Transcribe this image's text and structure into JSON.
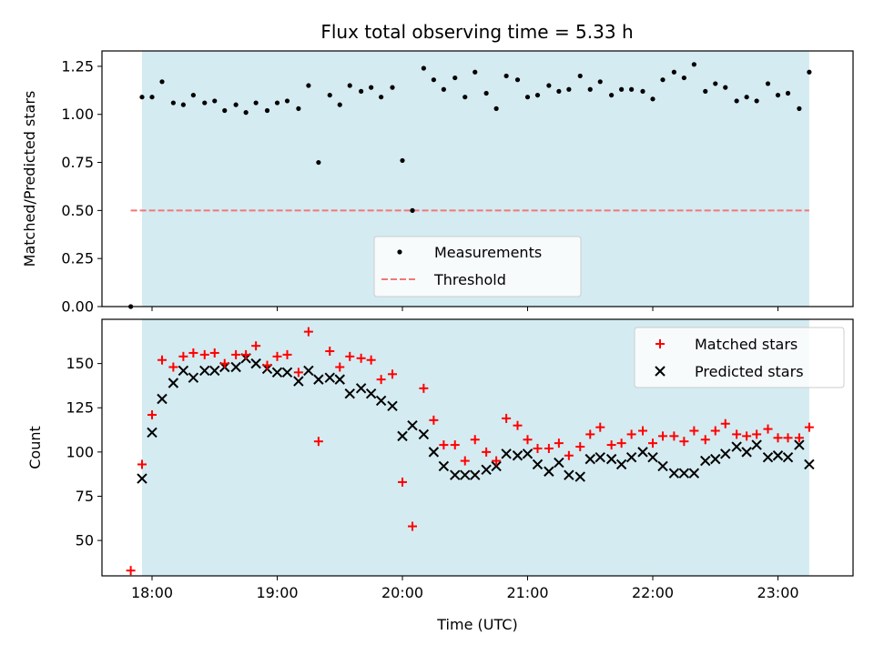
{
  "chart_data": {
    "type": "scatter",
    "title": "Flux total observing time = 5.33 h",
    "xlabel": "Time (UTC)",
    "x_unit": "hours UTC",
    "xlim": [
      17.6,
      23.6
    ],
    "xticks": [
      18,
      19,
      20,
      21,
      22,
      23
    ],
    "xtick_labels": [
      "18:00",
      "19:00",
      "20:00",
      "21:00",
      "22:00",
      "23:00"
    ],
    "observing_window": [
      17.92,
      23.25
    ],
    "top_panel": {
      "ylabel": "Matched/Predicted stars",
      "ylim": [
        0,
        1.33
      ],
      "yticks": [
        0.0,
        0.25,
        0.5,
        0.75,
        1.0,
        1.25
      ],
      "ytick_labels": [
        "0.00",
        "0.25",
        "0.50",
        "0.75",
        "1.00",
        "1.25"
      ],
      "legend_position": "lower-center",
      "legend": [
        "Measurements",
        "Threshold"
      ],
      "threshold": {
        "name": "Threshold",
        "value": 0.5,
        "x_range": [
          17.83,
          23.25
        ],
        "color": "#f07878"
      },
      "series": [
        {
          "name": "Measurements",
          "color": "#000000",
          "x": [
            17.83,
            17.92,
            18.0,
            18.08,
            18.17,
            18.25,
            18.33,
            18.42,
            18.5,
            18.58,
            18.67,
            18.75,
            18.83,
            18.92,
            19.0,
            19.08,
            19.17,
            19.25,
            19.33,
            19.42,
            19.5,
            19.58,
            19.67,
            19.75,
            19.83,
            19.92,
            20.0,
            20.08,
            20.17,
            20.25,
            20.33,
            20.42,
            20.5,
            20.58,
            20.67,
            20.75,
            20.83,
            20.92,
            21.0,
            21.08,
            21.17,
            21.25,
            21.33,
            21.42,
            21.5,
            21.58,
            21.67,
            21.75,
            21.83,
            21.92,
            22.0,
            22.08,
            22.17,
            22.25,
            22.33,
            22.42,
            22.5,
            22.58,
            22.67,
            22.75,
            22.83,
            22.92,
            23.0,
            23.08,
            23.17,
            23.25
          ],
          "y": [
            0.0,
            1.09,
            1.09,
            1.17,
            1.06,
            1.05,
            1.1,
            1.06,
            1.07,
            1.02,
            1.05,
            1.01,
            1.06,
            1.02,
            1.06,
            1.07,
            1.03,
            1.15,
            0.75,
            1.1,
            1.05,
            1.15,
            1.12,
            1.14,
            1.09,
            1.14,
            0.76,
            0.5,
            1.24,
            1.18,
            1.13,
            1.19,
            1.09,
            1.22,
            1.11,
            1.03,
            1.2,
            1.18,
            1.09,
            1.1,
            1.15,
            1.12,
            1.13,
            1.2,
            1.13,
            1.17,
            1.1,
            1.13,
            1.13,
            1.12,
            1.08,
            1.18,
            1.22,
            1.19,
            1.26,
            1.12,
            1.16,
            1.14,
            1.07,
            1.09,
            1.07,
            1.16,
            1.1,
            1.11,
            1.03,
            1.22
          ]
        }
      ]
    },
    "bottom_panel": {
      "ylabel": "Count",
      "ylim": [
        30,
        175
      ],
      "yticks": [
        50,
        75,
        100,
        125,
        150
      ],
      "ytick_labels": [
        "50",
        "75",
        "100",
        "125",
        "150"
      ],
      "legend_position": "top-right",
      "legend": [
        "Matched stars",
        "Predicted stars"
      ],
      "series": [
        {
          "name": "Matched stars",
          "marker": "plus",
          "color": "#ff0000",
          "x": [
            17.83,
            17.92,
            18.0,
            18.08,
            18.17,
            18.25,
            18.33,
            18.42,
            18.5,
            18.58,
            18.67,
            18.75,
            18.83,
            18.92,
            19.0,
            19.08,
            19.17,
            19.25,
            19.33,
            19.42,
            19.5,
            19.58,
            19.67,
            19.75,
            19.83,
            19.92,
            20.0,
            20.08,
            20.17,
            20.25,
            20.33,
            20.42,
            20.5,
            20.58,
            20.67,
            20.75,
            20.83,
            20.92,
            21.0,
            21.08,
            21.17,
            21.25,
            21.33,
            21.42,
            21.5,
            21.58,
            21.67,
            21.75,
            21.83,
            21.92,
            22.0,
            22.08,
            22.17,
            22.25,
            22.33,
            22.42,
            22.5,
            22.58,
            22.67,
            22.75,
            22.83,
            22.92,
            23.0,
            23.08,
            23.17,
            23.25
          ],
          "y": [
            33,
            93,
            121,
            152,
            148,
            154,
            156,
            155,
            156,
            150,
            155,
            155,
            160,
            149,
            154,
            155,
            145,
            168,
            106,
            157,
            148,
            154,
            153,
            152,
            141,
            144,
            83,
            58,
            136,
            118,
            104,
            104,
            95,
            107,
            100,
            95,
            119,
            115,
            107,
            102,
            102,
            105,
            98,
            103,
            110,
            114,
            104,
            105,
            110,
            112,
            105,
            109,
            109,
            106,
            112,
            107,
            112,
            116,
            110,
            109,
            110,
            113,
            108,
            108,
            108,
            114
          ]
        },
        {
          "name": "Predicted stars",
          "marker": "x",
          "color": "#000000",
          "x": [
            17.92,
            18.0,
            18.08,
            18.17,
            18.25,
            18.33,
            18.42,
            18.5,
            18.58,
            18.67,
            18.75,
            18.83,
            18.92,
            19.0,
            19.08,
            19.17,
            19.25,
            19.33,
            19.42,
            19.5,
            19.58,
            19.67,
            19.75,
            19.83,
            19.92,
            20.0,
            20.08,
            20.17,
            20.25,
            20.33,
            20.42,
            20.5,
            20.58,
            20.67,
            20.75,
            20.83,
            20.92,
            21.0,
            21.08,
            21.17,
            21.25,
            21.33,
            21.42,
            21.5,
            21.58,
            21.67,
            21.75,
            21.83,
            21.92,
            22.0,
            22.08,
            22.17,
            22.25,
            22.33,
            22.42,
            22.5,
            22.58,
            22.67,
            22.75,
            22.83,
            22.92,
            23.0,
            23.08,
            23.17,
            23.25
          ],
          "y": [
            85,
            111,
            130,
            139,
            146,
            142,
            146,
            146,
            148,
            148,
            153,
            150,
            147,
            145,
            145,
            140,
            146,
            141,
            142,
            141,
            133,
            136,
            133,
            129,
            126,
            109,
            115,
            110,
            100,
            92,
            87,
            87,
            87,
            90,
            92,
            99,
            98,
            99,
            93,
            89,
            94,
            87,
            86,
            96,
            97,
            96,
            93,
            97,
            100,
            97,
            92,
            88,
            88,
            88,
            95,
            96,
            99,
            103,
            100,
            104,
            97,
            98,
            97,
            104,
            93
          ]
        }
      ]
    }
  }
}
